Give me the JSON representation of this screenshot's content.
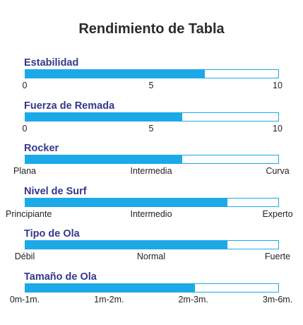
{
  "title": "Rendimiento de Tabla",
  "colors": {
    "bar": "#1ba9e8",
    "label": "#34388a",
    "title": "#2b2b2b"
  },
  "chart_data": {
    "type": "bar",
    "title": "Rendimiento de Tabla",
    "xlim": [
      0,
      10
    ],
    "metrics": [
      {
        "label": "Estabilidad",
        "value": 7.1,
        "ticks": [
          "0",
          "5",
          "10"
        ]
      },
      {
        "label": "Fuerza de Remada",
        "value": 6.2,
        "ticks": [
          "0",
          "5",
          "10"
        ]
      },
      {
        "label": "Rocker",
        "value": 6.2,
        "ticks": [
          "Plana",
          "Intermedia",
          "Curva"
        ]
      },
      {
        "label": "Nivel de Surf",
        "value": 8.0,
        "ticks": [
          "Principiante",
          "Intermedio",
          "Experto"
        ]
      },
      {
        "label": "Tipo de Ola",
        "value": 8.0,
        "ticks": [
          "Débil",
          "Normal",
          "Fuerte"
        ]
      },
      {
        "label": "Tamaño de Ola",
        "value": 6.7,
        "ticks": [
          "0m-1m.",
          "1m-2m.",
          "2m-3m.",
          "3m-6m."
        ]
      }
    ]
  }
}
